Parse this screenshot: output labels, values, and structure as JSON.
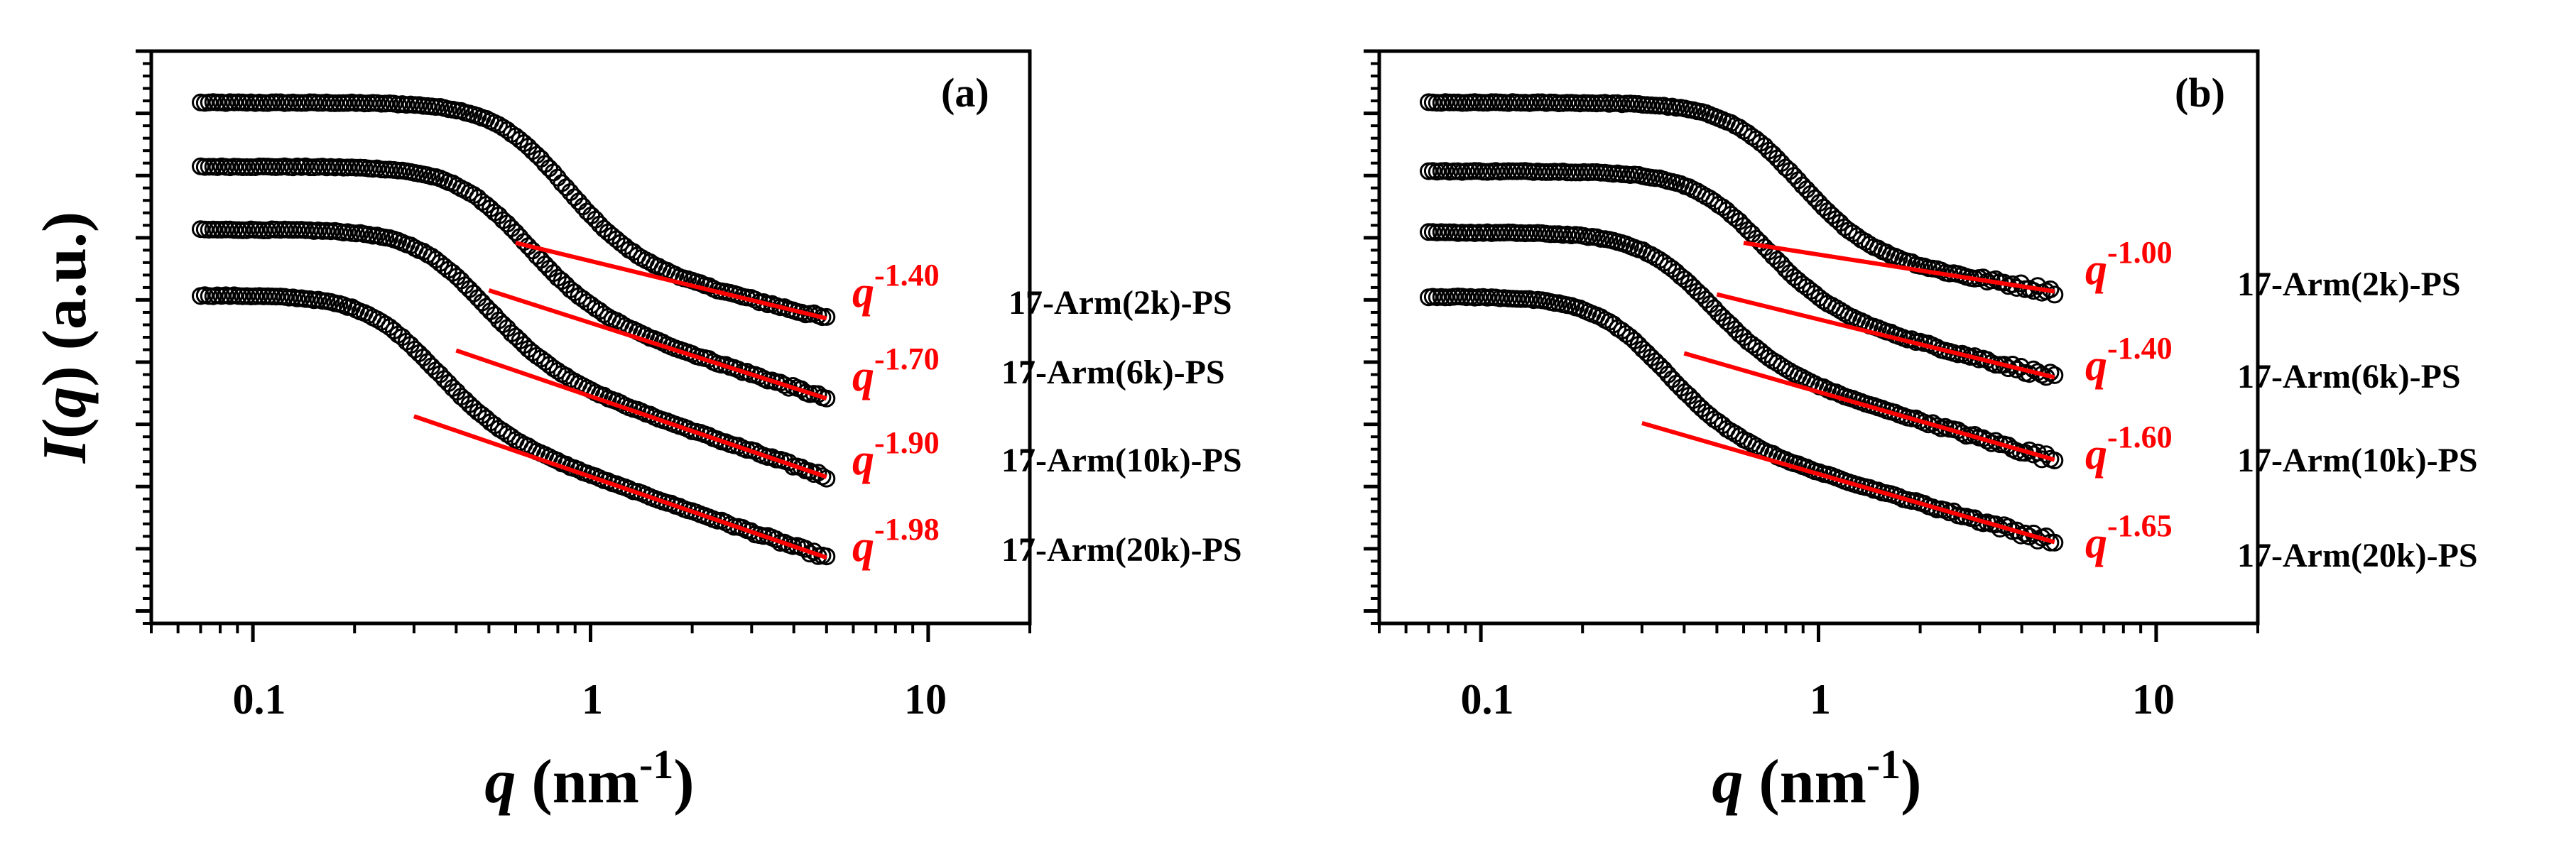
{
  "chart_data": [
    {
      "type": "scatter",
      "panel_label": "(a)",
      "xlabel": "q (nm⁻¹)",
      "ylabel": "I(q) (a.u.)",
      "xscale": "log",
      "xlim": [
        0.05,
        20
      ],
      "xticks": [
        0.1,
        1,
        10
      ],
      "xtick_labels": [
        "0.1",
        "1",
        "10"
      ],
      "ylim": [
        0,
        1
      ],
      "ytick_labels_shown": false,
      "series": [
        {
          "name": "17-Arm(2k)-PS",
          "q_range": [
            0.07,
            5.0
          ],
          "plateau": 0.91,
          "knee_q": 0.8,
          "fit_exponent": -1.4,
          "fit_label_base": "q",
          "fit_label_exp": "-1.40",
          "fit_q_range": [
            0.6,
            5.0
          ],
          "fit_y_range": [
            0.665,
            0.533
          ]
        },
        {
          "name": "17-Arm(6k)-PS",
          "q_range": [
            0.07,
            5.0
          ],
          "plateau": 0.798,
          "knee_q": 0.6,
          "fit_exponent": -1.7,
          "fit_label_base": "q",
          "fit_label_exp": "-1.70",
          "fit_q_range": [
            0.5,
            5.0
          ],
          "fit_y_range": [
            0.582,
            0.393
          ]
        },
        {
          "name": "17-Arm(10k)-PS",
          "q_range": [
            0.07,
            5.0
          ],
          "plateau": 0.688,
          "knee_q": 0.45,
          "fit_exponent": -1.9,
          "fit_label_base": "q",
          "fit_label_exp": "-1.90",
          "fit_q_range": [
            0.4,
            5.0
          ],
          "fit_y_range": [
            0.477,
            0.256
          ]
        },
        {
          "name": "17-Arm(20k)-PS",
          "q_range": [
            0.07,
            5.0
          ],
          "plateau": 0.573,
          "knee_q": 0.32,
          "fit_exponent": -1.98,
          "fit_label_base": "q",
          "fit_label_exp": "-1.98",
          "fit_q_range": [
            0.3,
            5.0
          ],
          "fit_y_range": [
            0.362,
            0.115
          ]
        }
      ]
    },
    {
      "type": "scatter",
      "panel_label": "(b)",
      "xlabel": "q (nm⁻¹)",
      "ylabel": "",
      "xscale": "log",
      "xlim": [
        0.05,
        20
      ],
      "xticks": [
        0.1,
        1,
        10
      ],
      "xtick_labels": [
        "0.1",
        "1",
        "10"
      ],
      "ylim": [
        0,
        1
      ],
      "ytick_labels_shown": false,
      "series": [
        {
          "name": "17-Arm(2k)-PS",
          "q_range": [
            0.07,
            5.0
          ],
          "plateau": 0.91,
          "knee_q": 0.85,
          "fit_exponent": -1.0,
          "fit_label_base": "q",
          "fit_label_exp": "-1.00",
          "fit_q_range": [
            0.6,
            5.0
          ],
          "fit_y_range": [
            0.665,
            0.58
          ]
        },
        {
          "name": "17-Arm(6k)-PS",
          "q_range": [
            0.07,
            5.0
          ],
          "plateau": 0.79,
          "knee_q": 0.65,
          "fit_exponent": -1.4,
          "fit_label_base": "q",
          "fit_label_exp": "-1.40",
          "fit_q_range": [
            0.5,
            5.0
          ],
          "fit_y_range": [
            0.575,
            0.43
          ]
        },
        {
          "name": "17-Arm(10k)-PS",
          "q_range": [
            0.07,
            5.0
          ],
          "plateau": 0.683,
          "knee_q": 0.45,
          "fit_exponent": -1.6,
          "fit_label_base": "q",
          "fit_label_exp": "-1.60",
          "fit_q_range": [
            0.4,
            5.0
          ],
          "fit_y_range": [
            0.472,
            0.286
          ]
        },
        {
          "name": "17-Arm(20k)-PS",
          "q_range": [
            0.07,
            5.0
          ],
          "plateau": 0.571,
          "knee_q": 0.33,
          "fit_exponent": -1.65,
          "fit_label_base": "q",
          "fit_label_exp": "-1.65",
          "fit_q_range": [
            0.3,
            5.0
          ],
          "fit_y_range": [
            0.35,
            0.142
          ]
        }
      ]
    }
  ]
}
